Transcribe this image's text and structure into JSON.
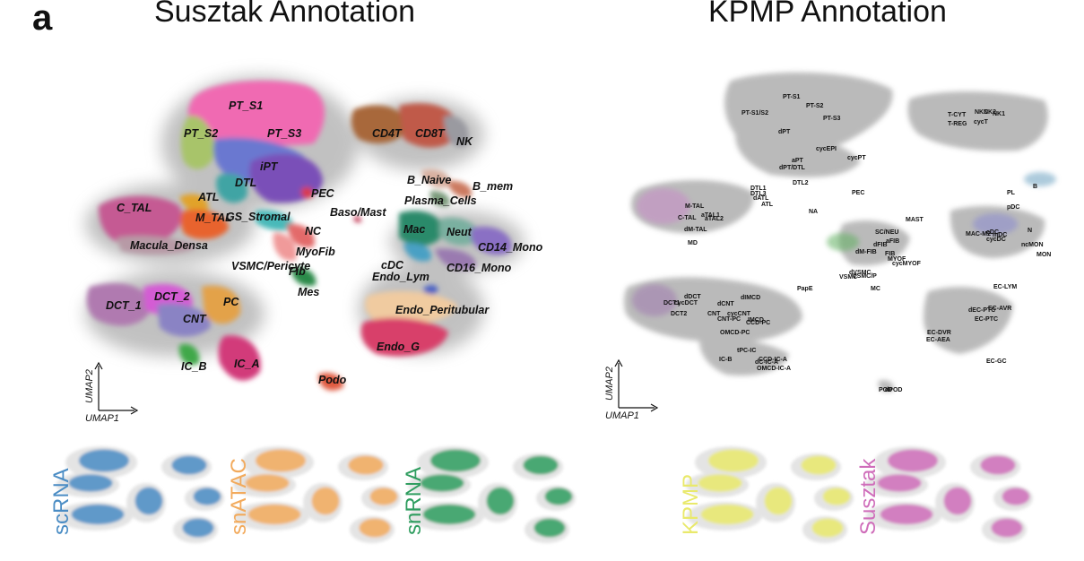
{
  "panel_letter": "a",
  "titles": {
    "left": "Susztak Annotation",
    "right": "KPMP Annotation"
  },
  "axes": {
    "x": "UMAP1",
    "y": "UMAP2"
  },
  "susztak_labels": [
    "PT_S1",
    "PT_S2",
    "PT_S3",
    "iPT",
    "DTL",
    "ATL",
    "C_TAL",
    "M_TAL",
    "Macula_Densa",
    "GS_Stromal",
    "NC",
    "MyoFib",
    "Fib",
    "VSMC/Pericyte",
    "Mes",
    "PEC",
    "Baso/Mast",
    "CD4T",
    "CD8T",
    "NK",
    "B_Naive",
    "B_mem",
    "Plasma_Cells",
    "Mac",
    "Neut",
    "CD14_Mono",
    "cDC",
    "CD16_Mono",
    "Endo_Lym",
    "Endo_Peritubular",
    "Endo_G",
    "DCT_1",
    "DCT_2",
    "CNT",
    "PC",
    "IC_B",
    "IC_A",
    "Podo"
  ],
  "kpmp_labels": [
    "PT-S1",
    "PT-S2",
    "PT-S1/S2",
    "PT-S3",
    "dPT",
    "cycPT",
    "aPT",
    "cycEPI",
    "dPT/DTL",
    "DTL2",
    "DTL1",
    "DTL3",
    "dATL",
    "ATL",
    "PEC",
    "NA",
    "M-TAL",
    "C-TAL",
    "aTAL1",
    "aTAL2",
    "dM-TAL",
    "MD",
    "MAST",
    "SC/NEU",
    "aFIB",
    "dFIB",
    "dM-FIB",
    "FIB",
    "MYOF",
    "cycMYOF",
    "dVSMC",
    "VSMC",
    "VSMC/P",
    "MC",
    "T-CYT",
    "NKC",
    "NK1",
    "NK2",
    "T-REG",
    "cycT",
    "B",
    "PL",
    "pDC",
    "MAC-M2",
    "cDC",
    "cycDC",
    "mDC",
    "N",
    "ncMON",
    "MON",
    "PapE",
    "EC-LYM",
    "dEC-PTC",
    "EC-AVR",
    "EC-PTC",
    "EC-DVR",
    "EC-AEA",
    "EC-GC",
    "DCT1",
    "DCT2",
    "dDCT",
    "cycDCT",
    "dCNT",
    "CNT",
    "CNT-PC",
    "cycCNT",
    "dIMCD",
    "IMCD",
    "OMCD-PC",
    "CCD-PC",
    "IC-B",
    "tPC-IC",
    "CCD-IC-A",
    "dC-IC-A",
    "OMCD-IC-A",
    "POD",
    "dPOD"
  ],
  "mini_labels": [
    "scRNA",
    "snATAC",
    "snRNA",
    "KPMP",
    "Susztak"
  ],
  "colors": {
    "scRNA": "#4a8cc4",
    "snATAC": "#f2aa5c",
    "snRNA": "#2f9d5f",
    "KPMP": "#e9e96b",
    "Susztak": "#cf6dba",
    "background_grey": "#b9b9b9"
  }
}
